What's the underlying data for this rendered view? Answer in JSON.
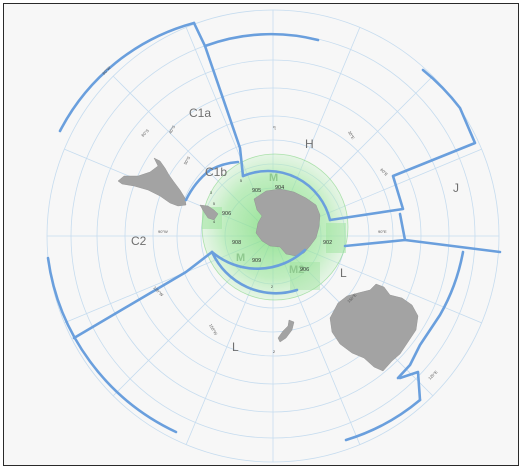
{
  "zones": {
    "c1a": "C1a",
    "c1b": "C1b",
    "c2": "C2",
    "h": "H",
    "j": "J",
    "l_right": "L",
    "l_bottom": "L",
    "m_top": "M",
    "m_left": "M",
    "m_right": "M2"
  },
  "subareas": [
    "904",
    "905",
    "906",
    "908",
    "909",
    "902",
    "906"
  ],
  "subarea_small": [
    "5",
    "5",
    "4",
    "2",
    "3",
    "2"
  ],
  "colors": {
    "boundary": "#6a9fdd",
    "land": "#a3a3a3",
    "graticule": "#c6dcef",
    "green_zone": "#5fcf5f"
  }
}
